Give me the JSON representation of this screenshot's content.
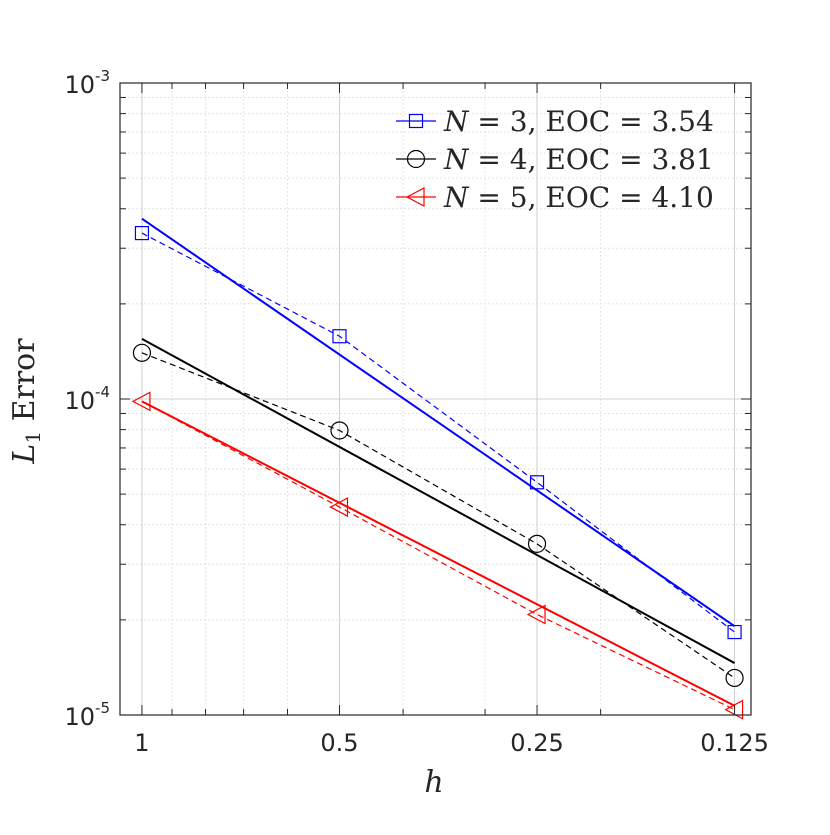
{
  "chart_data": {
    "type": "line",
    "title": "",
    "xlabel": "h",
    "ylabel": {
      "prefix": "L",
      "subscript": "1",
      "suffix": " Error"
    },
    "x_scale": "log",
    "x_reversed": true,
    "x_range": [
      1.08,
      0.118
    ],
    "x_ticks": [
      1,
      0.5,
      0.25,
      0.125
    ],
    "x_tick_labels": [
      "1",
      "0.5",
      "0.25",
      "0.125"
    ],
    "y_scale": "log",
    "y_range": [
      1e-05,
      0.001
    ],
    "y_ticks": [
      {
        "value": 0.001,
        "base": "10",
        "exp": "-3"
      },
      {
        "value": 0.0001,
        "base": "10",
        "exp": "-4"
      },
      {
        "value": 1e-05,
        "base": "10",
        "exp": "-5"
      }
    ],
    "grid": true,
    "minor_grid": true,
    "legend_placement": "top-right",
    "series": [
      {
        "name": "N = 3, EOC = 3.54",
        "legend": {
          "var": "N",
          "eq": " = 3, EOC = 3.54"
        },
        "color": "#0000ff",
        "marker": "square",
        "x": [
          1,
          0.5,
          0.25,
          0.125
        ],
        "y": [
          0.000335,
          0.000158,
          5.45e-05,
          1.83e-05
        ],
        "fit_y": [
          0.000372,
          1.91e-05
        ]
      },
      {
        "name": "N = 4, EOC = 3.81",
        "legend": {
          "var": "N",
          "eq": " = 4, EOC = 3.81"
        },
        "color": "#000000",
        "marker": "circle",
        "x": [
          1,
          0.5,
          0.25,
          0.125
        ],
        "y": [
          0.00014,
          7.95e-05,
          3.48e-05,
          1.31e-05
        ],
        "fit_y": [
          0.000155,
          1.46e-05
        ]
      },
      {
        "name": "N = 5, EOC = 4.10",
        "legend": {
          "var": "N",
          "eq": " = 5, EOC = 4.10"
        },
        "color": "#ff0000",
        "marker": "triangle-left",
        "x": [
          1,
          0.5,
          0.25,
          0.125
        ],
        "y": [
          9.83e-05,
          4.55e-05,
          2.08e-05,
          1.04e-05
        ],
        "fit_y": [
          9.83e-05,
          1.07e-05
        ]
      }
    ]
  }
}
